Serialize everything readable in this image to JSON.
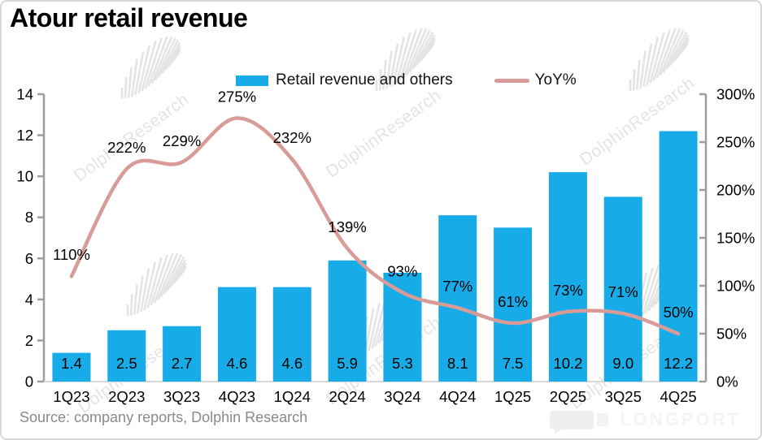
{
  "title": "Atour retail revenue",
  "legend": {
    "bar_label": "Retail revenue and others",
    "line_label": "YoY%"
  },
  "source": "Source: company reports, Dolphin Research",
  "watermark_text": "DolphinResearch",
  "brand": "LONGPORT",
  "colors": {
    "bar": "#17ACE8",
    "line": "#D89B97",
    "axis": "#9e9e9e",
    "baseline": "#d8d8d8",
    "text": "#000000",
    "watermark": "#e4e4e4"
  },
  "chart_data": {
    "type": "bar+line",
    "title": "Atour retail revenue",
    "categories": [
      "1Q23",
      "2Q23",
      "3Q23",
      "4Q23",
      "1Q24",
      "2Q24",
      "3Q24",
      "4Q24",
      "1Q25",
      "2Q25",
      "3Q25",
      "4Q25"
    ],
    "series": [
      {
        "name": "Retail revenue and others",
        "type": "bar",
        "axis": "left",
        "values": [
          1.4,
          2.5,
          2.7,
          4.6,
          4.6,
          5.9,
          5.3,
          8.1,
          7.5,
          10.2,
          9.0,
          12.2
        ]
      },
      {
        "name": "YoY%",
        "type": "line",
        "axis": "right",
        "unit": "%",
        "values": [
          110,
          222,
          229,
          275,
          232,
          139,
          93,
          77,
          61,
          73,
          71,
          50
        ]
      }
    ],
    "left_axis": {
      "min": 0,
      "max": 14,
      "ticks": [
        0,
        2,
        4,
        6,
        8,
        10,
        12,
        14
      ]
    },
    "right_axis": {
      "min": 0,
      "max": 300,
      "ticks": [
        0,
        50,
        100,
        150,
        200,
        250,
        300
      ],
      "suffix": "%"
    },
    "legend_position": "top-center",
    "grid": false,
    "data_labels": {
      "bar": "inside-bottom",
      "line": "above-point"
    }
  }
}
